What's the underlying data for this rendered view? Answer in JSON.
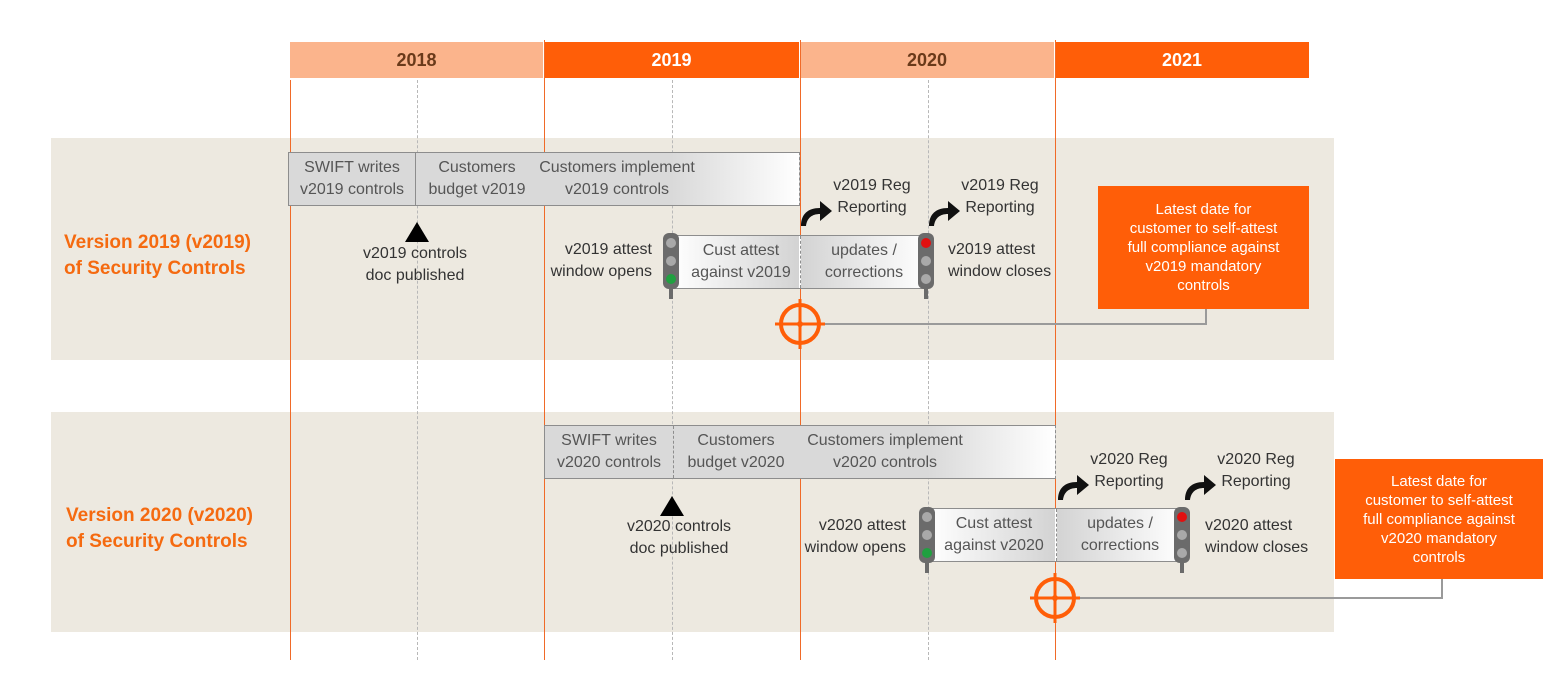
{
  "timeline": {
    "years": [
      "2018",
      "2019",
      "2020",
      "2021"
    ]
  },
  "rows": [
    {
      "label": "Version 2019 (v2019)\nof Security Controls",
      "phases": [
        "SWIFT writes\nv2019 controls",
        "Customers\nbudget v2019",
        "Customers implement\nv2019 controls"
      ],
      "published": "v2019 controls\ndoc published",
      "window_opens": "v2019 attest\nwindow opens",
      "window_segments": [
        "Cust attest\nagainst v2019",
        "updates /\ncorrections"
      ],
      "window_closes": "v2019 attest\nwindow closes",
      "reporting": [
        "v2019 Reg\nReporting",
        "v2019 Reg\nReporting"
      ],
      "callout": "Latest date for\ncustomer to self-attest\nfull compliance against\nv2019 mandatory\ncontrols"
    },
    {
      "label": "Version 2020 (v2020)\nof Security Controls",
      "phases": [
        "SWIFT writes\nv2020 controls",
        "Customers\nbudget v2020",
        "Customers implement\nv2020 controls"
      ],
      "published": "v2020 controls\ndoc published",
      "window_opens": "v2020 attest\nwindow opens",
      "window_segments": [
        "Cust attest\nagainst v2020",
        "updates /\ncorrections"
      ],
      "window_closes": "v2020 attest\nwindow closes",
      "reporting": [
        "v2020 Reg\nReporting",
        "v2020 Reg\nReporting"
      ],
      "callout": "Latest date for\ncustomer to self-attest\nfull compliance against\nv2020 mandatory\ncontrols"
    }
  ],
  "colors": {
    "accent": "#ff5e08",
    "accent_light": "#fbb48c",
    "band": "#ede9e0",
    "traffic_red": "#e01010",
    "traffic_green": "#20a040"
  },
  "icons": [
    "triangle-marker-icon",
    "traffic-light-icon",
    "curved-arrow-icon",
    "target-crosshair-icon"
  ]
}
